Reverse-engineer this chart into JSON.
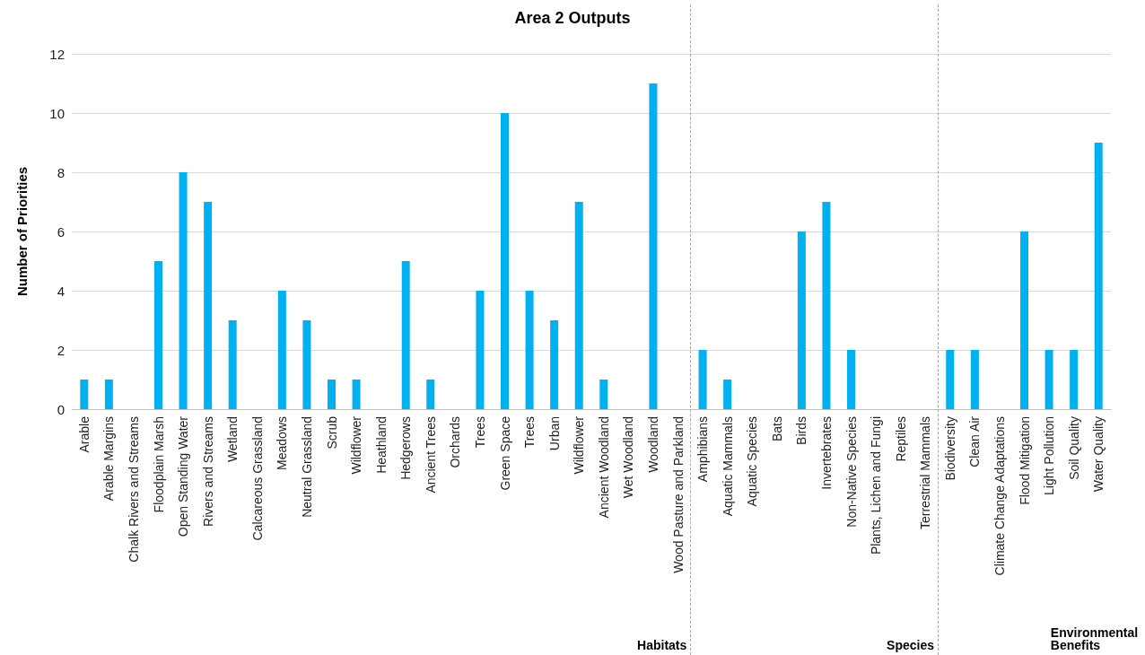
{
  "chart_data": {
    "type": "bar",
    "title": "Area 2 Outputs",
    "ylabel": "Number of Priorities",
    "categories": [
      "Arable",
      "Arable Margins",
      "Chalk Rivers and Streams",
      "Floodplain Marsh",
      "Open Standing Water",
      "Rivers and Streams",
      "Wetland",
      "Calcareous Grassland",
      "Meadows",
      "Neutral Grassland",
      "Scrub",
      "Wildflower",
      "Heathland",
      "Hedgerows",
      "Ancient Trees",
      "Orchards",
      "Trees",
      "Green Space",
      "Trees",
      "Urban",
      "Wildflower",
      "Ancient Woodland",
      "Wet Woodland",
      "Woodland",
      "Wood Pasture and Parkland",
      "Amphibians",
      "Aquatic Mammals",
      "Aquatic Species",
      "Bats",
      "Birds",
      "Invertebrates",
      "Non-Native Species",
      "Plants, Lichen and Fungi",
      "Reptiles",
      "Terrestrial Mammals",
      "Biodiversity",
      "Clean Air",
      "Climate Change Adaptations",
      "Flood Mitigation",
      "Light Pollution",
      "Soil Quality",
      "Water Quality"
    ],
    "values": [
      1,
      1,
      0,
      5,
      8,
      7,
      3,
      0,
      4,
      3,
      1,
      1,
      0,
      5,
      1,
      0,
      4,
      10,
      4,
      3,
      7,
      1,
      0,
      11,
      0,
      2,
      1,
      0,
      0,
      6,
      7,
      2,
      0,
      0,
      0,
      2,
      2,
      0,
      6,
      2,
      2,
      9
    ],
    "color": "#00b0f0",
    "ylim": [
      0,
      12
    ],
    "yticks": [
      0,
      2,
      4,
      6,
      8,
      10,
      12
    ],
    "grid": "y",
    "annotations": [
      "Habitats",
      "Species",
      "Environmental Benefits"
    ]
  }
}
